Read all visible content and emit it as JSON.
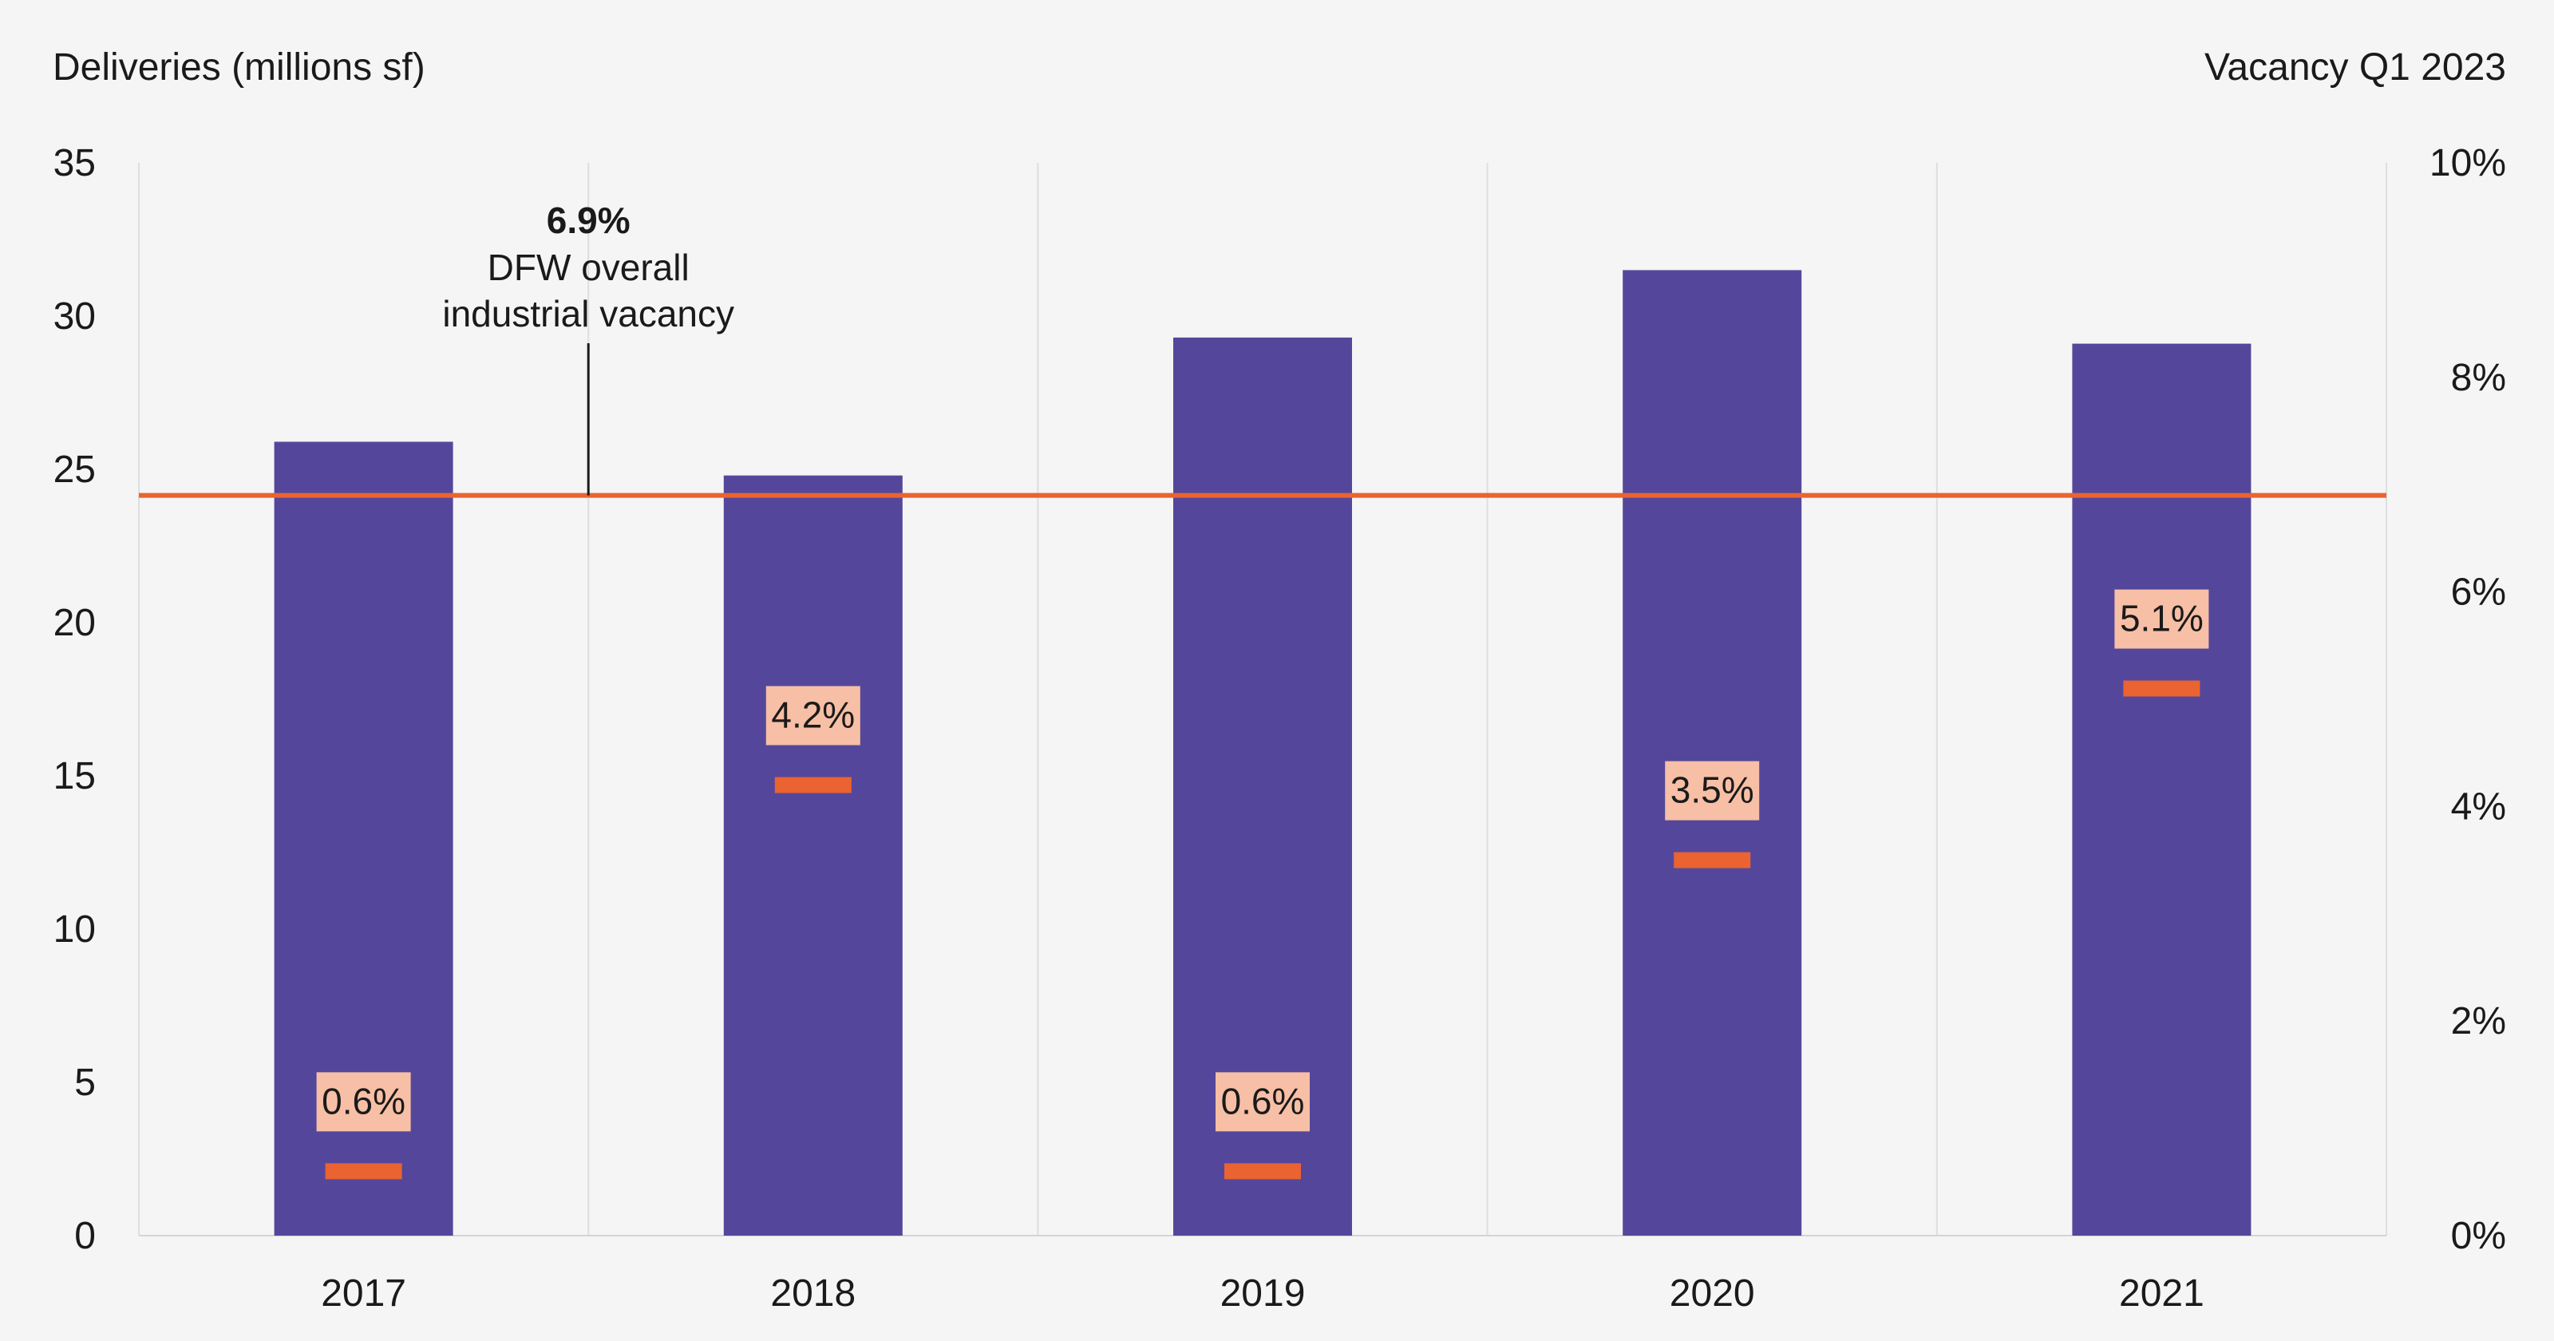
{
  "chart_data": {
    "type": "bar",
    "categories": [
      "2017",
      "2018",
      "2019",
      "2020",
      "2021"
    ],
    "series": [
      {
        "values": [
          25.9,
          24.8,
          29.3,
          31.5,
          29.1
        ],
        "color": "#54479b"
      }
    ],
    "markers": {
      "values": [
        0.6,
        4.2,
        0.6,
        3.5,
        5.1
      ],
      "labels": [
        "0.6%",
        "4.2%",
        "0.6%",
        "3.5%",
        "5.1%"
      ],
      "color": "#ea6331",
      "label_bg": "#f7bfa5"
    },
    "reference_line": {
      "value": 6.9,
      "color": "#ea6331",
      "annotation": {
        "value_label": "6.9%",
        "line1": "DFW overall",
        "line2": "industrial vacancy"
      }
    },
    "ylabel": "Deliveries (millions sf)",
    "y2label": "Vacancy Q1 2023",
    "ylim": [
      0,
      35
    ],
    "y2lim": [
      0,
      10
    ],
    "y_ticks": [
      "0",
      "5",
      "10",
      "15",
      "20",
      "25",
      "30",
      "35"
    ],
    "y2_ticks": [
      "0%",
      "2%",
      "4%",
      "6%",
      "8%",
      "10%"
    ],
    "grid": "vertical"
  }
}
